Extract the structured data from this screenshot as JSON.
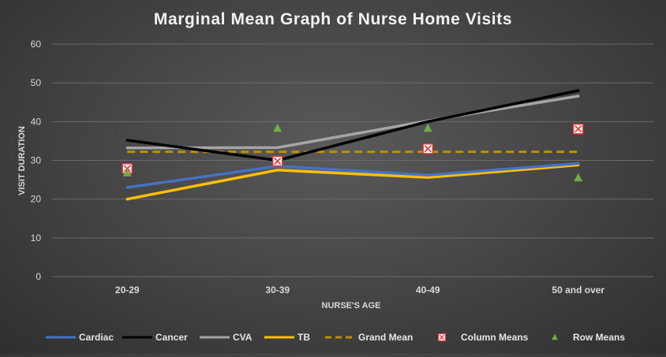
{
  "chart_data": {
    "type": "line",
    "title": "Marginal Mean Graph of Nurse Home Visits",
    "xlabel": "NURSE'S AGE",
    "ylabel": "VISIT DURATION",
    "categories": [
      "20-29",
      "30-39",
      "40-49",
      "50 and over"
    ],
    "ylim": [
      0,
      60
    ],
    "yticks": [
      0,
      10,
      20,
      30,
      40,
      50,
      60
    ],
    "grid": true,
    "legend": "bottom",
    "series": [
      {
        "name": "Cardiac",
        "kind": "line",
        "color": "#4472c4",
        "values": [
          23,
          28.5,
          26.2,
          29.2
        ]
      },
      {
        "name": "Cancer",
        "kind": "line",
        "color": "#000000",
        "values": [
          35.2,
          30,
          40,
          48
        ]
      },
      {
        "name": "CVA",
        "kind": "line",
        "color": "#a5a5a5",
        "values": [
          33.2,
          33.3,
          40.2,
          46.6
        ]
      },
      {
        "name": "TB",
        "kind": "line",
        "color": "#ffc000",
        "values": [
          20,
          27.5,
          25.6,
          28.8
        ]
      },
      {
        "name": "Grand Mean",
        "kind": "dashed",
        "color": "#bf9000",
        "values": [
          32.2,
          32.2,
          32.2,
          32.2
        ]
      },
      {
        "name": "Column Means",
        "kind": "marker-x",
        "color": "#e83c3c",
        "values": [
          27.9,
          29.8,
          33,
          38.1
        ]
      },
      {
        "name": "Row Means",
        "kind": "marker-triangle",
        "color": "#70ad47",
        "values": [
          26.8,
          38.3,
          38.3,
          25.5
        ]
      }
    ]
  }
}
